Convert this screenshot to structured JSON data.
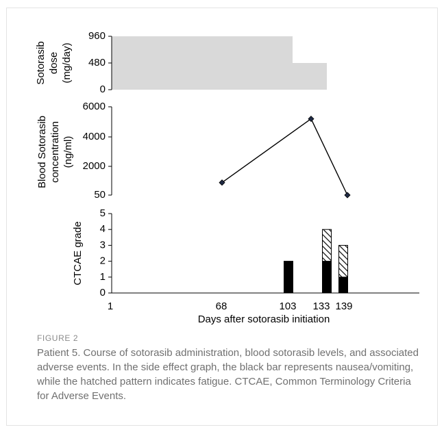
{
  "figure": {
    "label": "FIGURE 2",
    "caption": "Patient 5. Course of sotorasib administration, blood sotorasib levels, and associated adverse events. In the side effect graph, the black bar represents nausea/vomiting, while the hatched pattern indicates fatigue. CTCAE, Common Terminology Criteria for Adverse Events."
  },
  "chart_data": [
    {
      "type": "area",
      "ylabel_lines": [
        "Sotorasib",
        "dose",
        "(mg/day)"
      ],
      "yticks": [
        "960",
        "480",
        "0"
      ],
      "ylim": [
        0,
        960
      ],
      "segments": [
        {
          "x_start": 1,
          "x_end": 116,
          "value": 960
        },
        {
          "x_start": 116,
          "x_end": 139,
          "value": 480
        }
      ],
      "fill_color": "#d9d9d9"
    },
    {
      "type": "line",
      "ylabel_lines": [
        "Blood Sotorasib",
        "concentration",
        "(ng/ml)"
      ],
      "yticks": [
        "6000",
        "4000",
        "2000",
        "50"
      ],
      "ylim": [
        0,
        6000
      ],
      "points": [
        {
          "x": 68,
          "y": 900
        },
        {
          "x": 128,
          "y": 5200
        },
        {
          "x": 150,
          "y": 50
        }
      ],
      "line_color": "#000000",
      "marker_color": "#1f2a44"
    },
    {
      "type": "bar",
      "stacked": true,
      "ylabel": "CTCAE grade",
      "yticks": [
        "5",
        "4",
        "3",
        "2",
        "1",
        "0"
      ],
      "ylim": [
        0,
        5
      ],
      "xlabel": "Days after sotorasib initiation",
      "xticks": [
        "1",
        "68",
        "103",
        "133",
        "139"
      ],
      "bars": [
        {
          "x": 103,
          "nausea_vomiting": 2,
          "fatigue": 0
        },
        {
          "x": 133,
          "nausea_vomiting": 2,
          "fatigue": 2
        },
        {
          "x": 139,
          "nausea_vomiting": 1,
          "fatigue": 2
        }
      ],
      "series": [
        {
          "key": "nausea_vomiting",
          "color": "#000000",
          "pattern": "solid"
        },
        {
          "key": "fatigue",
          "color": "#000000",
          "pattern": "hatched"
        }
      ]
    }
  ]
}
